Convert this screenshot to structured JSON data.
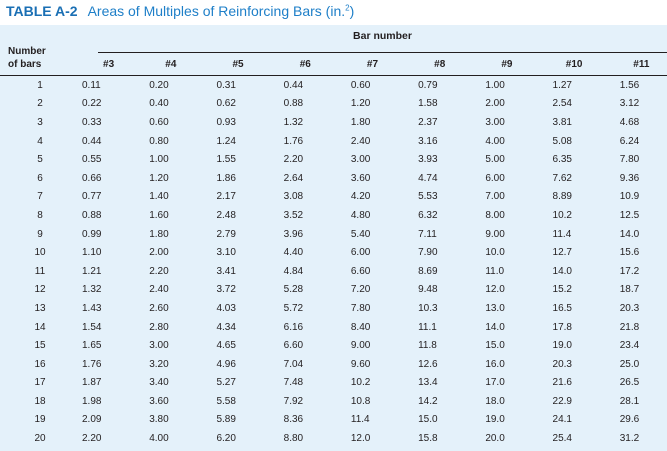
{
  "title": {
    "tag": "TABLE A-2",
    "text": "Areas of Multiples of Reinforcing Bars (in.",
    "sup": "2",
    "close": ")"
  },
  "table": {
    "group_header": "Bar number",
    "row_header": [
      "Number",
      "of bars"
    ],
    "columns": [
      "#3",
      "#4",
      "#5",
      "#6",
      "#7",
      "#8",
      "#9",
      "#10",
      "#11"
    ],
    "rows": [
      [
        "1",
        "0.11",
        "0.20",
        "0.31",
        "0.44",
        "0.60",
        "0.79",
        "1.00",
        "1.27",
        "1.56"
      ],
      [
        "2",
        "0.22",
        "0.40",
        "0.62",
        "0.88",
        "1.20",
        "1.58",
        "2.00",
        "2.54",
        "3.12"
      ],
      [
        "3",
        "0.33",
        "0.60",
        "0.93",
        "1.32",
        "1.80",
        "2.37",
        "3.00",
        "3.81",
        "4.68"
      ],
      [
        "4",
        "0.44",
        "0.80",
        "1.24",
        "1.76",
        "2.40",
        "3.16",
        "4.00",
        "5.08",
        "6.24"
      ],
      [
        "5",
        "0.55",
        "1.00",
        "1.55",
        "2.20",
        "3.00",
        "3.93",
        "5.00",
        "6.35",
        "7.80"
      ],
      [
        "6",
        "0.66",
        "1.20",
        "1.86",
        "2.64",
        "3.60",
        "4.74",
        "6.00",
        "7.62",
        "9.36"
      ],
      [
        "7",
        "0.77",
        "1.40",
        "2.17",
        "3.08",
        "4.20",
        "5.53",
        "7.00",
        "8.89",
        "10.9"
      ],
      [
        "8",
        "0.88",
        "1.60",
        "2.48",
        "3.52",
        "4.80",
        "6.32",
        "8.00",
        "10.2",
        "12.5"
      ],
      [
        "9",
        "0.99",
        "1.80",
        "2.79",
        "3.96",
        "5.40",
        "7.11",
        "9.00",
        "11.4",
        "14.0"
      ],
      [
        "10",
        "1.10",
        "2.00",
        "3.10",
        "4.40",
        "6.00",
        "7.90",
        "10.0",
        "12.7",
        "15.6"
      ],
      [
        "11",
        "1.21",
        "2.20",
        "3.41",
        "4.84",
        "6.60",
        "8.69",
        "11.0",
        "14.0",
        "17.2"
      ],
      [
        "12",
        "1.32",
        "2.40",
        "3.72",
        "5.28",
        "7.20",
        "9.48",
        "12.0",
        "15.2",
        "18.7"
      ],
      [
        "13",
        "1.43",
        "2.60",
        "4.03",
        "5.72",
        "7.80",
        "10.3",
        "13.0",
        "16.5",
        "20.3"
      ],
      [
        "14",
        "1.54",
        "2.80",
        "4.34",
        "6.16",
        "8.40",
        "11.1",
        "14.0",
        "17.8",
        "21.8"
      ],
      [
        "15",
        "1.65",
        "3.00",
        "4.65",
        "6.60",
        "9.00",
        "11.8",
        "15.0",
        "19.0",
        "23.4"
      ],
      [
        "16",
        "1.76",
        "3.20",
        "4.96",
        "7.04",
        "9.60",
        "12.6",
        "16.0",
        "20.3",
        "25.0"
      ],
      [
        "17",
        "1.87",
        "3.40",
        "5.27",
        "7.48",
        "10.2",
        "13.4",
        "17.0",
        "21.6",
        "26.5"
      ],
      [
        "18",
        "1.98",
        "3.60",
        "5.58",
        "7.92",
        "10.8",
        "14.2",
        "18.0",
        "22.9",
        "28.1"
      ],
      [
        "19",
        "2.09",
        "3.80",
        "5.89",
        "8.36",
        "11.4",
        "15.0",
        "19.0",
        "24.1",
        "29.6"
      ],
      [
        "20",
        "2.20",
        "4.00",
        "6.20",
        "8.80",
        "12.0",
        "15.8",
        "20.0",
        "25.4",
        "31.2"
      ]
    ]
  },
  "colors": {
    "title_blue": "#1e7fc8",
    "table_background": "#e4f1fa",
    "text": "#231f20"
  }
}
